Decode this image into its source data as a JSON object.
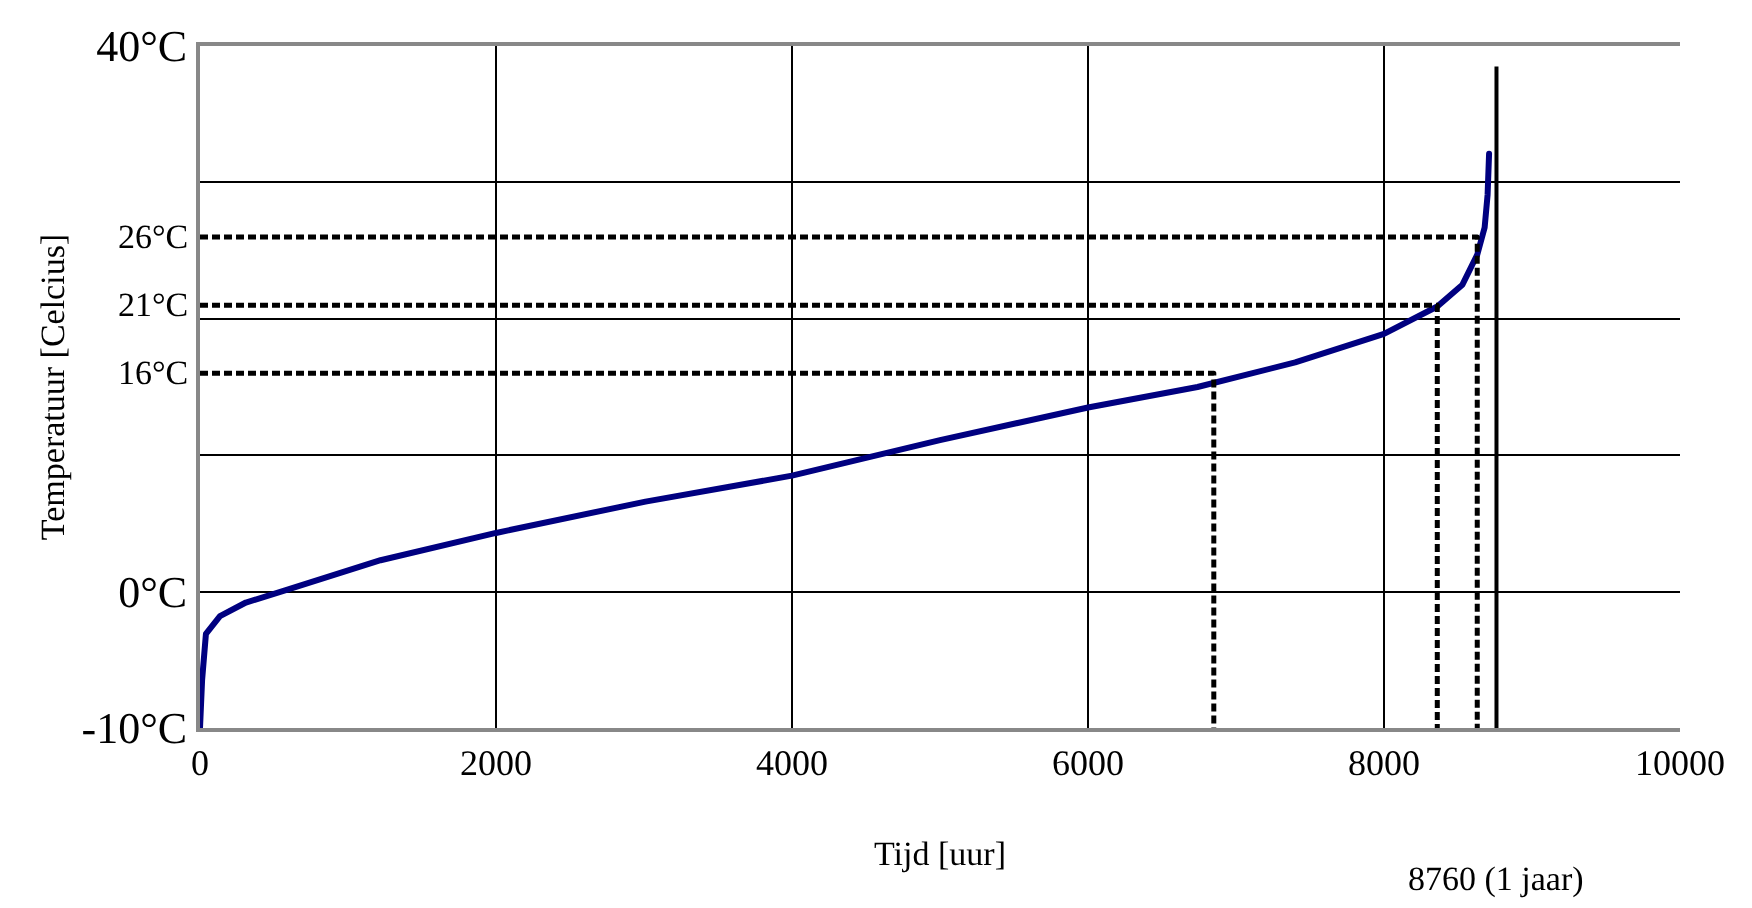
{
  "chart_data": {
    "type": "line",
    "xlabel": "Tijd [uur]",
    "ylabel": "Temperatuur [Celcius]",
    "xlim": [
      0,
      10000
    ],
    "xticks": [
      0,
      2000,
      4000,
      6000,
      8000,
      10000
    ],
    "ylim": [
      -10,
      40
    ],
    "yticks": [
      {
        "value": -10,
        "label": "-10°C"
      },
      {
        "value": 0,
        "label": "0°C"
      },
      {
        "value": 10,
        "label": null
      },
      {
        "value": 20,
        "label": null
      },
      {
        "value": 30,
        "label": null
      },
      {
        "value": 40,
        "label": "40°C"
      }
    ],
    "grid": true,
    "series": [
      {
        "color": "#000080",
        "line_style": "solid",
        "x": [
          0,
          14,
          40,
          135,
          310,
          580,
          1220,
          2000,
          3010,
          4000,
          5000,
          6000,
          6740,
          7400,
          8000,
          8360,
          8530,
          8630,
          8680,
          8700,
          8710
        ],
        "values": [
          -10,
          -6.5,
          -3.1,
          -1.8,
          -0.8,
          0.1,
          2.3,
          4.3,
          6.6,
          8.5,
          11.1,
          13.5,
          15,
          16.8,
          18.9,
          20.9,
          22.5,
          24.7,
          26.7,
          29.1,
          32.1
        ]
      },
      {
        "color": "#000000",
        "line_style": "dotted",
        "x": [
          0,
          8630,
          8630
        ],
        "values": [
          26,
          26,
          -10
        ]
      },
      {
        "color": "#000000",
        "line_style": "dotted",
        "x": [
          0,
          8360,
          8360
        ],
        "values": [
          21,
          21,
          -10
        ]
      },
      {
        "color": "#000000",
        "line_style": "dotted",
        "x": [
          0,
          6850,
          6850
        ],
        "values": [
          16,
          16,
          -10
        ]
      }
    ],
    "ref_lines": [
      {
        "axis": "x",
        "value": 8760,
        "label": "8760 (1 jaar)",
        "color": "#000000",
        "line_style": "solid"
      }
    ],
    "annotations": [
      "26°C",
      "21°C",
      "16°C"
    ]
  }
}
